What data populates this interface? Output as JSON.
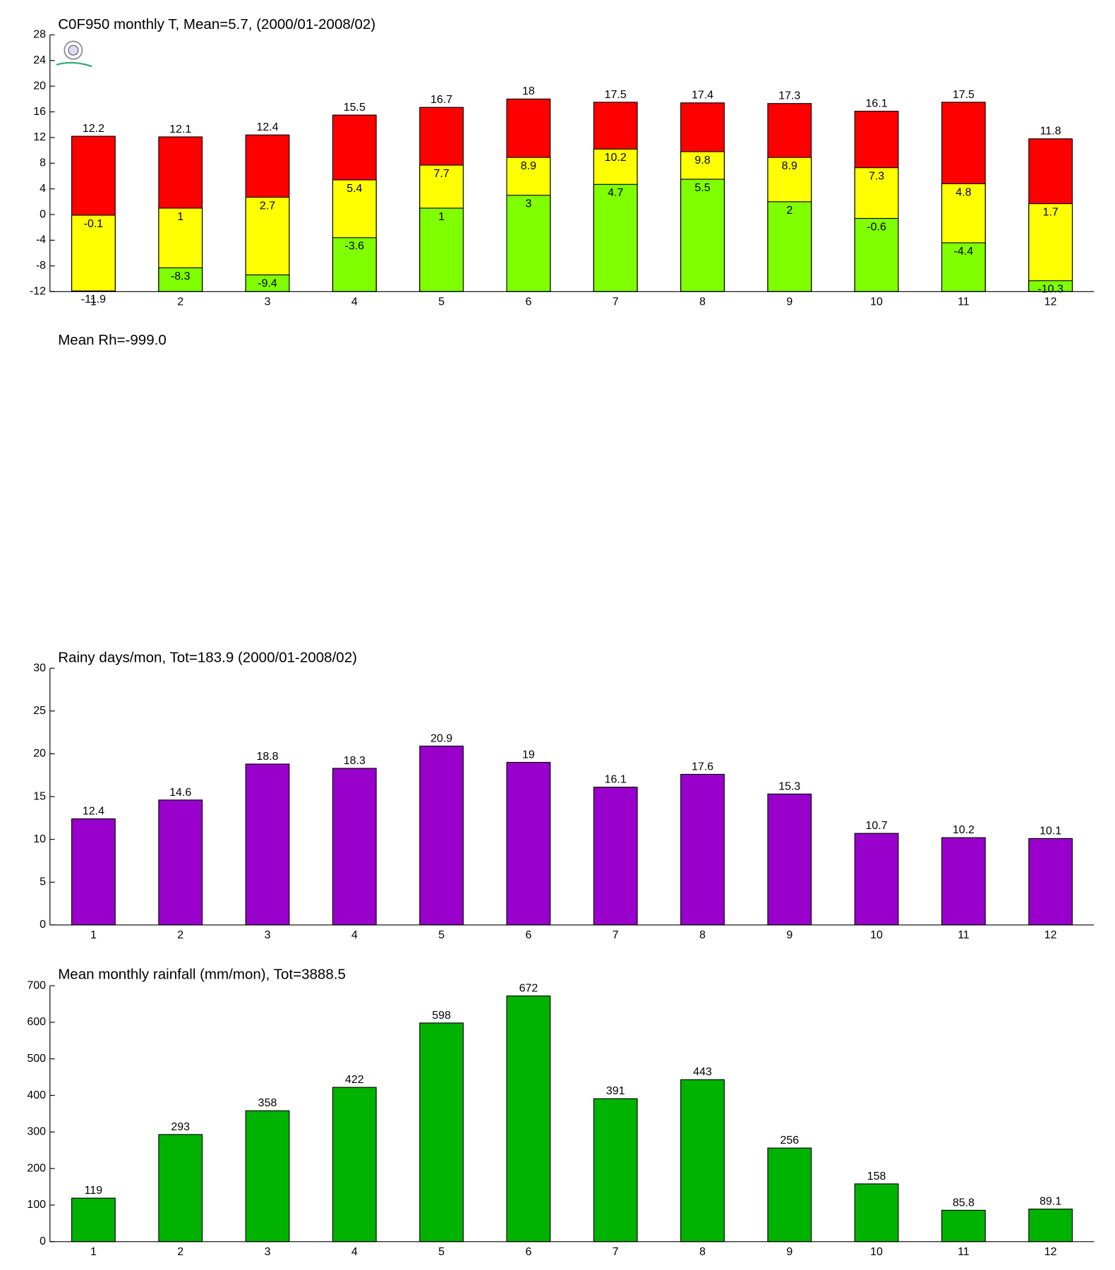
{
  "chart_data": [
    {
      "type": "bar",
      "title": "C0F950 monthly T, Mean=5.7, (2000/01-2008/02)",
      "categories": [
        "1",
        "2",
        "3",
        "4",
        "5",
        "6",
        "7",
        "8",
        "9",
        "10",
        "11",
        "12"
      ],
      "series": [
        {
          "color": "#ff0000",
          "values": [
            12.2,
            12.1,
            12.4,
            15.5,
            16.7,
            18,
            17.5,
            17.4,
            17.3,
            16.1,
            17.5,
            11.8
          ]
        },
        {
          "color": "#ffff00",
          "values": [
            -0.1,
            1,
            2.7,
            5.4,
            7.7,
            8.9,
            10.2,
            9.8,
            8.9,
            7.3,
            4.8,
            1.7
          ]
        },
        {
          "color": "#80ff00",
          "values": [
            -11.9,
            -8.3,
            -9.4,
            -3.6,
            1,
            3,
            4.7,
            5.5,
            2,
            -0.6,
            -4.4,
            -10.3
          ]
        }
      ],
      "ylim": [
        -12,
        28
      ],
      "yticks": [
        -12,
        -8,
        -4,
        0,
        4,
        8,
        12,
        16,
        20,
        24,
        28
      ]
    },
    {
      "type": "bar",
      "title": "Mean Rh=-999.0"
    },
    {
      "type": "bar",
      "title": "Rainy days/mon, Tot=183.9 (2000/01-2008/02)",
      "categories": [
        "1",
        "2",
        "3",
        "4",
        "5",
        "6",
        "7",
        "8",
        "9",
        "10",
        "11",
        "12"
      ],
      "series": [
        {
          "color": "#9900cc",
          "values": [
            12.4,
            14.6,
            18.8,
            18.3,
            20.9,
            19,
            16.1,
            17.6,
            15.3,
            10.7,
            10.2,
            10.1
          ]
        }
      ],
      "ylim": [
        0,
        30
      ],
      "yticks": [
        0,
        5,
        10,
        15,
        20,
        25,
        30
      ]
    },
    {
      "type": "bar",
      "title": "Mean monthly rainfall (mm/mon), Tot=3888.5",
      "categories": [
        "1",
        "2",
        "3",
        "4",
        "5",
        "6",
        "7",
        "8",
        "9",
        "10",
        "11",
        "12"
      ],
      "series": [
        {
          "color": "#00b300",
          "values": [
            119,
            293,
            358,
            422,
            598,
            672,
            391,
            443,
            256,
            158,
            85.8,
            89.1
          ]
        }
      ],
      "ylim": [
        0,
        700
      ],
      "yticks": [
        0,
        100,
        200,
        300,
        400,
        500,
        600,
        700
      ]
    }
  ]
}
